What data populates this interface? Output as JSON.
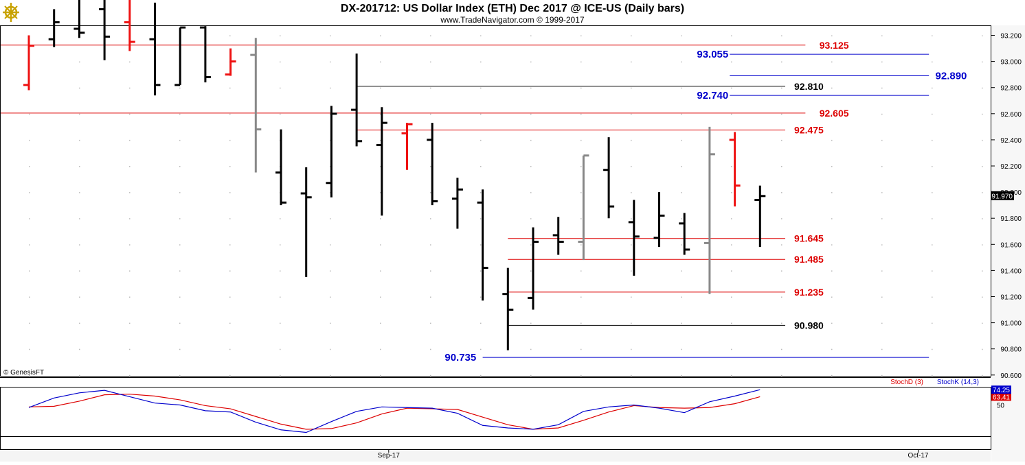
{
  "header": {
    "title": "DX-201712:  US Dollar Index (ETH) Dec 2017 @ ICE-US  (Daily bars)",
    "subtitle": "www.TradeNavigator.com © 1999-2017"
  },
  "copyright": "© GenesisFT",
  "icons": {
    "logo": "ship-wheel-logo-icon"
  },
  "colors": {
    "background": "#ffffff",
    "frame": "#000000",
    "bar_black": "#000000",
    "bar_red": "#ee1111",
    "bar_green": "#22dd22",
    "bar_gray": "#888888",
    "level_red": "#dd0000",
    "level_blue": "#0000cc",
    "level_black": "#000000",
    "stoch_d": "#dd0000",
    "stoch_k": "#0000cc"
  },
  "chart_data": [
    {
      "type": "ohlc",
      "title": "DX-201712:  US Dollar Index (ETH) Dec 2017 @ ICE-US  (Daily bars)",
      "ylim": [
        90.6,
        93.3
      ],
      "y_ticks": [
        "93.200",
        "93.000",
        "92.800",
        "92.600",
        "92.400",
        "92.200",
        "92.000",
        "91.800",
        "91.600",
        "91.400",
        "91.200",
        "91.000",
        "90.800",
        "90.600"
      ],
      "x_ticks": [
        {
          "label": "Sep-17",
          "bar": 14
        },
        {
          "label": "Oct-17",
          "bar": 35
        }
      ],
      "last_price": "91.970",
      "bars": [
        {
          "o": 92.82,
          "h": 93.2,
          "l": 92.78,
          "c": 93.12,
          "color": "red"
        },
        {
          "o": 93.17,
          "h": 93.4,
          "l": 93.11,
          "c": 93.3,
          "color": "black"
        },
        {
          "o": 93.25,
          "h": 93.5,
          "l": 93.18,
          "c": 93.22,
          "color": "black"
        },
        {
          "o": 93.4,
          "h": 93.5,
          "l": 93.01,
          "c": 93.19,
          "color": "black"
        },
        {
          "o": 93.3,
          "h": 93.5,
          "l": 93.08,
          "c": 93.15,
          "color": "red"
        },
        {
          "o": 93.17,
          "h": 93.45,
          "l": 92.74,
          "c": 92.82,
          "color": "black"
        },
        {
          "o": 92.82,
          "h": 93.26,
          "l": 92.82,
          "c": 93.26,
          "color": "black"
        },
        {
          "o": 93.26,
          "h": 93.27,
          "l": 92.84,
          "c": 92.88,
          "color": "black"
        },
        {
          "o": 92.9,
          "h": 93.1,
          "l": 92.89,
          "c": 93.0,
          "color": "red"
        },
        {
          "o": 93.05,
          "h": 93.18,
          "l": 92.15,
          "c": 92.48,
          "color": "gray"
        },
        {
          "o": 92.15,
          "h": 92.48,
          "l": 91.9,
          "c": 91.92,
          "color": "black"
        },
        {
          "o": 91.99,
          "h": 92.19,
          "l": 91.35,
          "c": 91.96,
          "color": "black"
        },
        {
          "o": 92.07,
          "h": 92.66,
          "l": 91.96,
          "c": 92.6,
          "color": "black"
        },
        {
          "o": 92.63,
          "h": 93.06,
          "l": 92.35,
          "c": 92.39,
          "color": "black"
        },
        {
          "o": 92.36,
          "h": 92.65,
          "l": 91.82,
          "c": 92.53,
          "color": "black"
        },
        {
          "o": 92.45,
          "h": 92.53,
          "l": 92.17,
          "c": 92.52,
          "color": "red"
        },
        {
          "o": 92.4,
          "h": 92.53,
          "l": 91.9,
          "c": 91.93,
          "color": "black"
        },
        {
          "o": 91.95,
          "h": 92.11,
          "l": 91.72,
          "c": 92.02,
          "color": "black"
        },
        {
          "o": 91.92,
          "h": 92.02,
          "l": 91.17,
          "c": 91.42,
          "color": "black"
        },
        {
          "o": 91.22,
          "h": 91.42,
          "l": 90.79,
          "c": 91.1,
          "color": "black"
        },
        {
          "o": 91.19,
          "h": 91.73,
          "l": 91.1,
          "c": 91.62,
          "color": "black"
        },
        {
          "o": 91.67,
          "h": 91.81,
          "l": 91.52,
          "c": 91.62,
          "color": "black"
        },
        {
          "o": 91.62,
          "h": 92.28,
          "l": 91.48,
          "c": 92.28,
          "color": "gray"
        },
        {
          "o": 92.17,
          "h": 92.42,
          "l": 91.8,
          "c": 91.89,
          "color": "black"
        },
        {
          "o": 91.77,
          "h": 91.94,
          "l": 91.36,
          "c": 91.66,
          "color": "black"
        },
        {
          "o": 91.65,
          "h": 92.0,
          "l": 91.58,
          "c": 91.82,
          "color": "black"
        },
        {
          "o": 91.76,
          "h": 91.84,
          "l": 91.52,
          "c": 91.56,
          "color": "black"
        },
        {
          "o": 91.61,
          "h": 92.5,
          "l": 91.22,
          "c": 92.29,
          "color": "gray"
        },
        {
          "o": 92.4,
          "h": 92.46,
          "l": 91.89,
          "c": 92.05,
          "color": "red"
        },
        {
          "o": 91.94,
          "h": 92.05,
          "l": 91.58,
          "c": 91.97,
          "color": "black"
        }
      ],
      "levels": [
        {
          "label": "93.125",
          "value": 93.125,
          "color": "red",
          "from_bar": -1,
          "to_bar": 30.8,
          "label_side": "right",
          "label_bar": 31.3
        },
        {
          "label": "93.055",
          "value": 93.055,
          "color": "blue",
          "from_bar": 27.8,
          "to_bar": 35.7,
          "label_side": "left",
          "label_bar": 27.8
        },
        {
          "label": "92.890",
          "value": 92.89,
          "color": "blue",
          "from_bar": 27.8,
          "to_bar": 35.7,
          "label_side": "right",
          "label_bar": 35.9
        },
        {
          "label": "92.810",
          "value": 92.81,
          "color": "black",
          "from_bar": 13.0,
          "to_bar": 30.0,
          "label_side": "right",
          "label_bar": 30.3
        },
        {
          "label": "92.740",
          "value": 92.74,
          "color": "blue",
          "from_bar": 27.8,
          "to_bar": 35.7,
          "label_side": "left",
          "label_bar": 27.8
        },
        {
          "label": "92.605",
          "value": 92.605,
          "color": "red",
          "from_bar": -1,
          "to_bar": 30.8,
          "label_side": "right",
          "label_bar": 31.3
        },
        {
          "label": "92.475",
          "value": 92.475,
          "color": "red",
          "from_bar": 13.0,
          "to_bar": 30.0,
          "label_side": "right",
          "label_bar": 30.3
        },
        {
          "label": "91.645",
          "value": 91.645,
          "color": "red",
          "from_bar": 19.0,
          "to_bar": 30.0,
          "label_side": "right",
          "label_bar": 30.3
        },
        {
          "label": "91.485",
          "value": 91.485,
          "color": "red",
          "from_bar": 19.0,
          "to_bar": 30.0,
          "label_side": "right",
          "label_bar": 30.3
        },
        {
          "label": "91.235",
          "value": 91.235,
          "color": "red",
          "from_bar": 19.0,
          "to_bar": 30.0,
          "label_side": "right",
          "label_bar": 30.3
        },
        {
          "label": "90.980",
          "value": 90.98,
          "color": "black",
          "from_bar": 19.0,
          "to_bar": 30.0,
          "label_side": "right",
          "label_bar": 30.3
        },
        {
          "label": "90.735",
          "value": 90.735,
          "color": "blue",
          "from_bar": 18.0,
          "to_bar": 35.7,
          "label_side": "left",
          "label_bar": 17.8
        }
      ]
    },
    {
      "type": "line",
      "ylim": [
        0,
        100
      ],
      "y_ticks": [
        "50"
      ],
      "series": [
        {
          "name": "StochD (3)",
          "color": "red",
          "last_label": "63.41",
          "values": [
            47,
            48,
            56,
            66,
            67,
            64,
            58,
            49,
            44,
            32,
            20,
            12,
            13,
            22,
            36,
            45,
            44,
            43,
            31,
            19,
            12,
            14,
            26,
            39,
            49,
            46,
            45,
            46,
            52,
            63
          ]
        },
        {
          "name": "StochK (14,3)",
          "color": "blue",
          "last_label": "74.25",
          "values": [
            46,
            61,
            69,
            73,
            63,
            53,
            50,
            41,
            39,
            23,
            11,
            7,
            24,
            40,
            47,
            46,
            45,
            37,
            18,
            14,
            12,
            19,
            40,
            47,
            50,
            45,
            38,
            55,
            64,
            74
          ]
        }
      ]
    }
  ]
}
